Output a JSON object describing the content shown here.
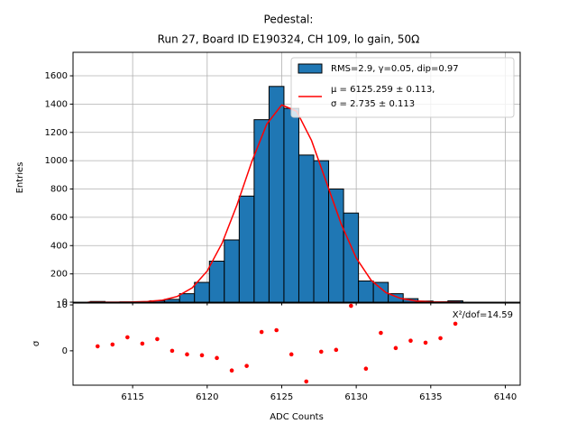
{
  "chart_data": [
    {
      "type": "histogram",
      "title": [
        "Pedestal:",
        "Run 27, Board ID E190324, CH 109, lo gain, 50Ω"
      ],
      "ylabel": "Entries",
      "bins": [
        6112.15,
        6113.15,
        6114.15,
        6115.15,
        6116.15,
        6117.15,
        6118.15,
        6119.15,
        6120.15,
        6121.15,
        6122.15,
        6123.15,
        6124.15,
        6125.15,
        6126.15,
        6127.15,
        6128.15,
        6129.15,
        6130.15,
        6131.15,
        6132.15,
        6133.15,
        6134.15,
        6135.15,
        6136.15,
        6137.15
      ],
      "series": [
        {
          "name": "RMS=2.9, γ=0.05, dip=0.97",
          "color": "#1f77b4",
          "values": [
            5,
            0,
            2,
            3,
            10,
            20,
            60,
            140,
            290,
            440,
            750,
            1290,
            1525,
            1370,
            1040,
            1000,
            800,
            630,
            150,
            140,
            60,
            25,
            8,
            3,
            10
          ]
        }
      ],
      "fit": {
        "name": [
          "μ = 6125.259 ± 0.113,",
          "σ = 2.735 ± 0.113"
        ],
        "color": "#ff0000",
        "x": [
          6112,
          6113,
          6114,
          6115,
          6116,
          6117,
          6118,
          6119,
          6120,
          6121,
          6122,
          6123,
          6124,
          6125,
          6126,
          6127,
          6128,
          6129,
          6130,
          6131,
          6132,
          6133,
          6134,
          6135,
          6136,
          6137
        ],
        "values": [
          0,
          0,
          0.3,
          1.2,
          4.6,
          14.6,
          41,
          102,
          220,
          417,
          688,
          995,
          1259,
          1394,
          1350,
          1143,
          847,
          550,
          312,
          155,
          67,
          26,
          8.5,
          2.5,
          0.6,
          0.1
        ]
      },
      "xlim": [
        6111,
        6141
      ],
      "ylim": [
        0,
        1766
      ],
      "xticks": [
        6115,
        6120,
        6125,
        6130,
        6135,
        6140
      ],
      "yticks": [
        0,
        200,
        400,
        600,
        800,
        1000,
        1200,
        1400,
        1600
      ],
      "grid": true,
      "legend": "upper right"
    },
    {
      "type": "scatter",
      "xlabel": "ADC Counts",
      "ylabel": "σ",
      "annotation": "X²/dof=14.59",
      "x": [
        6112.65,
        6113.65,
        6114.65,
        6115.65,
        6116.65,
        6117.65,
        6118.65,
        6119.65,
        6120.65,
        6121.65,
        6122.65,
        6123.65,
        6124.65,
        6125.65,
        6126.65,
        6127.65,
        6128.65,
        6129.65,
        6130.65,
        6131.65,
        6132.65,
        6133.65,
        6134.65,
        6135.65,
        6136.65
      ],
      "values": [
        0.98,
        1.37,
        2.94,
        1.57,
        2.55,
        0,
        -0.78,
        -0.98,
        -1.57,
        -4.3,
        -3.3,
        4.1,
        4.5,
        -0.78,
        -6.7,
        -0.2,
        0.2,
        9.8,
        -3.9,
        3.9,
        0.6,
        2.2,
        1.76,
        2.75,
        5.9
      ],
      "color": "#ff0000",
      "xlim": [
        6111,
        6141
      ],
      "ylim": [
        -7.5,
        10.4
      ],
      "xticks": [
        6115,
        6120,
        6125,
        6130,
        6135,
        6140
      ],
      "yticks": [
        0,
        10
      ]
    }
  ]
}
